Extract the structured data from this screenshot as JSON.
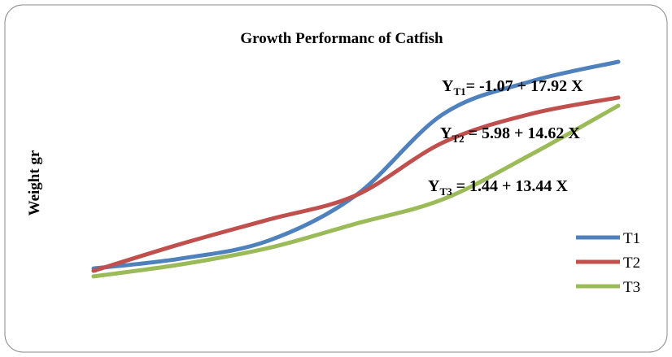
{
  "chart_data": {
    "type": "line",
    "title": "Growth Performanc of Catfish",
    "ylabel": "Weight gr",
    "categories": [
      null,
      null,
      null,
      null,
      null,
      null,
      null
    ],
    "ylim": [
      0,
      100
    ],
    "legend": "right",
    "series": [
      {
        "name": "T1",
        "color": "#4f81bd",
        "values": [
          19.4,
          22.8,
          28.9,
          44.4,
          72.2,
          83.3,
          90
        ]
      },
      {
        "name": "T2",
        "color": "#c0504d",
        "values": [
          18.6,
          27.8,
          36.1,
          44.4,
          62.5,
          72.2,
          77.8
        ]
      },
      {
        "name": "T3",
        "color": "#9bbb59",
        "values": [
          16.7,
          20.8,
          26.4,
          34.7,
          43.1,
          58.3,
          75
        ]
      }
    ],
    "annotations": [
      {
        "main": "Y",
        "sub": "T1",
        "rest": "=  -1.07  + 17.92 X"
      },
      {
        "main": "Y",
        "sub": "T2",
        "rest": " =  5.98  + 14.62 X"
      },
      {
        "main": "Y",
        "sub": "T3",
        "rest": " =  1.44  + 13.44 X"
      }
    ]
  }
}
